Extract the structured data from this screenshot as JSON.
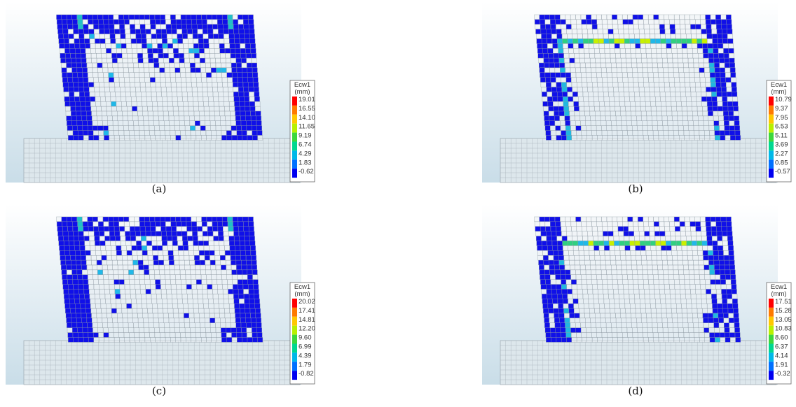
{
  "panels": [
    {
      "caption": "(a)",
      "legend": {
        "title": "Ecw1",
        "unit": "(mm)",
        "values": [
          "19.01",
          "16.55",
          "14.10",
          "11.65",
          "9.19",
          "6.74",
          "4.29",
          "1.83",
          "-0.62"
        ]
      }
    },
    {
      "caption": "(b)",
      "legend": {
        "title": "Ecw1",
        "unit": "(mm)",
        "values": [
          "10.79",
          "9.37",
          "7.95",
          "6.53",
          "5.11",
          "3.69",
          "2.27",
          "0.85",
          "-0.57"
        ]
      }
    },
    {
      "caption": "(c)",
      "legend": {
        "title": "Ecw1",
        "unit": "(mm)",
        "values": [
          "20.02",
          "17.41",
          "14.81",
          "12.20",
          "9.60",
          "6.99",
          "4.39",
          "1.79",
          "-0.82"
        ]
      }
    },
    {
      "caption": "(d)",
      "legend": {
        "title": "Ecw1",
        "unit": "(mm)",
        "values": [
          "17.51",
          "15.28",
          "13.05",
          "10.83",
          "8.60",
          "6.37",
          "4.14",
          "1.91",
          "-0.32"
        ]
      }
    }
  ]
}
